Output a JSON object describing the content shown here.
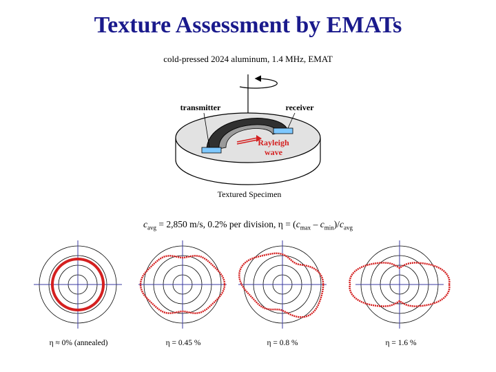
{
  "title": "Texture Assessment by EMATs",
  "subtitle": "cold-pressed 2024 aluminum, 1.4 MHz, EMAT",
  "diagram": {
    "transmitter_label": "transmitter",
    "receiver_label": "receiver",
    "wave_label_line1": "Rayleigh",
    "wave_label_line2": "wave",
    "specimen_label": "Textured Specimen"
  },
  "formula": {
    "c": "c",
    "avg_sub": "avg",
    "speed": " = 2,850 m/s,  0.2% per division,  η  =  (",
    "max_sub": "max",
    "minus": " – ",
    "min_sub": "min",
    "close": ")/",
    "avg_sub2": "avg"
  },
  "polar_plots": [
    {
      "caption": "η ≈ 0% (annealed)",
      "anisotropy_percent": 0
    },
    {
      "caption": "η = 0.45 %",
      "anisotropy_percent": 0.45
    },
    {
      "caption": "η = 0.8 %",
      "anisotropy_percent": 0.8
    },
    {
      "caption": "η = 1.6 %",
      "anisotropy_percent": 1.6
    }
  ],
  "colors": {
    "title": "#1a1a8c",
    "curve": "#d42020",
    "axis": "#3a3aa0",
    "transducer": "#7ec8ff",
    "wave_arrow": "#d42020"
  }
}
